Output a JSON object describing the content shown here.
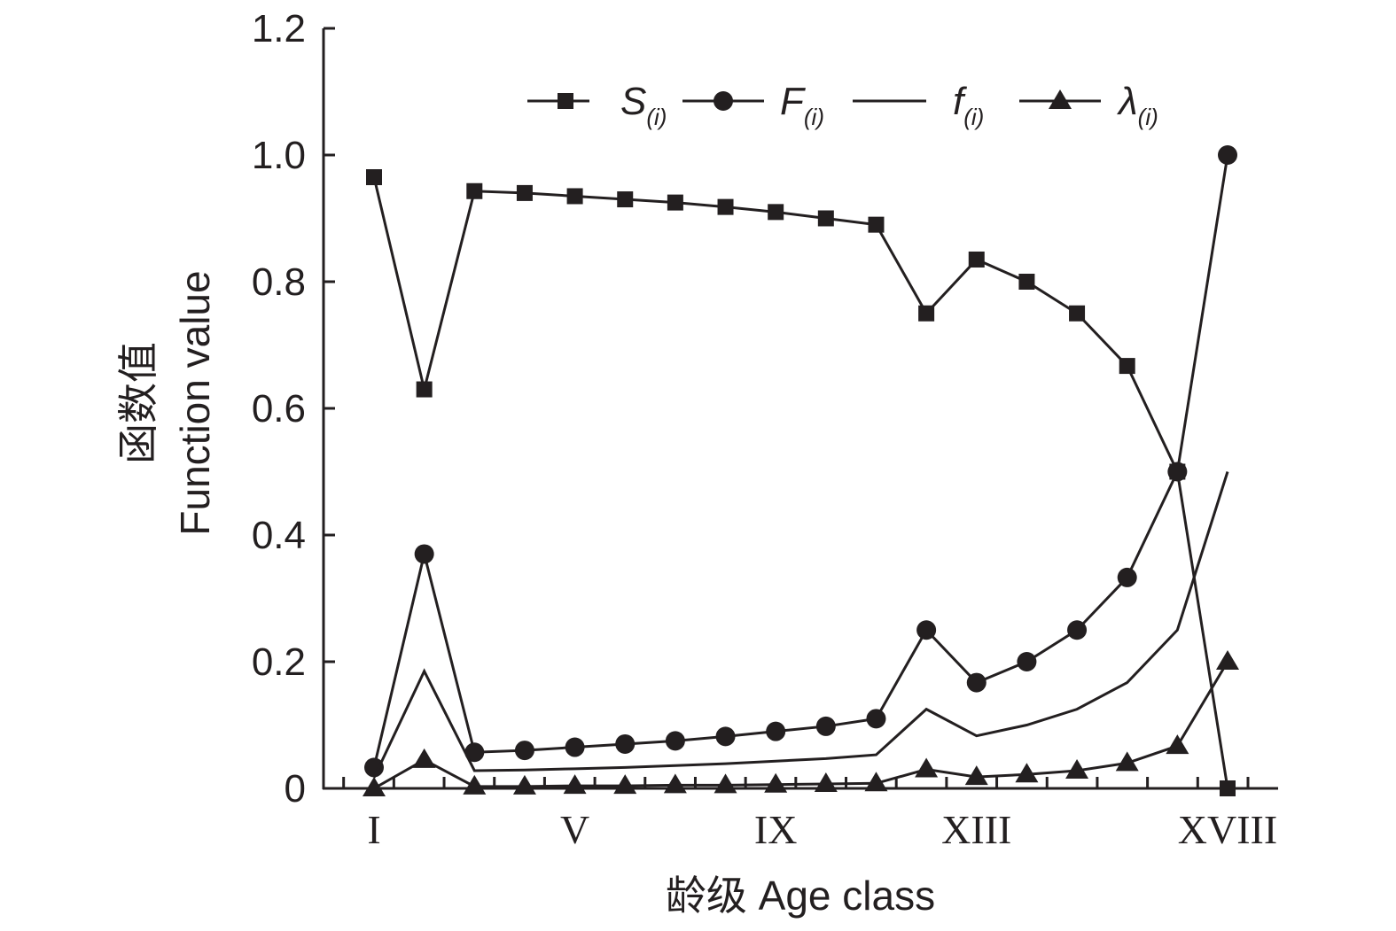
{
  "chart_data": {
    "type": "line",
    "xlabel": "龄级 Age class",
    "ylabel_cn": "函数值",
    "ylabel": "Function value",
    "ylim": [
      0,
      1.2
    ],
    "yticks": [
      "0",
      "0.2",
      "0.4",
      "0.6",
      "0.8",
      "1.0",
      "1.2"
    ],
    "x_count": 18,
    "x_ticklabels": [
      {
        "index": 0,
        "label": "I"
      },
      {
        "index": 4,
        "label": "V"
      },
      {
        "index": 8,
        "label": "IX"
      },
      {
        "index": 12,
        "label": "XIII"
      },
      {
        "index": 17,
        "label": "XVIII"
      }
    ],
    "legend_position": "top",
    "series": [
      {
        "name": "S",
        "sub": "(i)",
        "marker": "square",
        "values": [
          0.965,
          0.63,
          0.943,
          0.94,
          0.935,
          0.93,
          0.925,
          0.918,
          0.91,
          0.9,
          0.89,
          0.75,
          0.835,
          0.8,
          0.75,
          0.667,
          0.5,
          0.0
        ]
      },
      {
        "name": "F",
        "sub": "(i)",
        "marker": "circle",
        "values": [
          0.033,
          0.37,
          0.057,
          0.06,
          0.065,
          0.07,
          0.075,
          0.082,
          0.09,
          0.098,
          0.11,
          0.25,
          0.167,
          0.2,
          0.25,
          0.333,
          0.5,
          1.0
        ]
      },
      {
        "name": "f",
        "sub": "(i)",
        "marker": "none",
        "values": [
          0.017,
          0.185,
          0.028,
          0.029,
          0.031,
          0.033,
          0.036,
          0.039,
          0.043,
          0.047,
          0.053,
          0.125,
          0.083,
          0.1,
          0.125,
          0.167,
          0.25,
          0.5
        ]
      },
      {
        "name": "λ",
        "sub": "(i)",
        "marker": "triangle",
        "values": [
          0.0,
          0.045,
          0.003,
          0.003,
          0.004,
          0.004,
          0.005,
          0.005,
          0.006,
          0.007,
          0.008,
          0.03,
          0.018,
          0.022,
          0.028,
          0.04,
          0.067,
          0.2
        ]
      }
    ]
  }
}
